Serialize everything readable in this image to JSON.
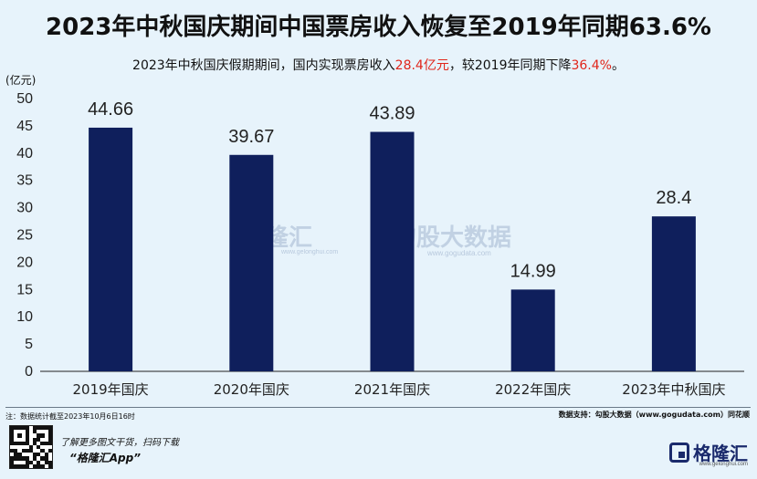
{
  "title": "2023年中秋国庆期间中国票房收入恢复至2019年同期63.6%",
  "subtitle": {
    "part1": "2023年中秋国庆假期期间，国内实现票房收入",
    "highlight1": "28.4亿元",
    "part2": "，较2019年同期下降",
    "highlight2": "36.4%",
    "part3": "。"
  },
  "colors": {
    "bar": "#0f1f5c",
    "highlight": "#e0261b",
    "background": "#e7f3fb"
  },
  "watermark": {
    "brand1": "格隆汇",
    "brand1_url": "www.gelonghui.com",
    "brand2": "勾股大数据",
    "brand2_url": "www.gogudata.com"
  },
  "footer": {
    "note": "注：数据统计截至2023年10月6日16时",
    "source": "数据支持：勾股大数据（www.gogudata.com）同花顺",
    "promo_line1": "了解更多图文干货，扫码下载",
    "promo_line2": "“格隆汇App”",
    "logo_text": "格隆汇",
    "logo_sub": "www.gelonghui.com",
    "qr_icon": "qr-code-icon"
  },
  "chart_data": {
    "type": "bar",
    "categories": [
      "2019年国庆",
      "2020年国庆",
      "2021年国庆",
      "2022年国庆",
      "2023年中秋国庆"
    ],
    "values": [
      44.66,
      39.67,
      43.89,
      14.99,
      28.4
    ],
    "value_labels": [
      "44.66",
      "39.67",
      "43.89",
      "14.99",
      "28.4"
    ],
    "ylabel": "(亿元)",
    "ylim": [
      0,
      50
    ],
    "yticks": [
      0,
      5,
      10,
      15,
      20,
      25,
      30,
      35,
      40,
      45,
      50
    ],
    "grid": false,
    "legend": "none"
  }
}
